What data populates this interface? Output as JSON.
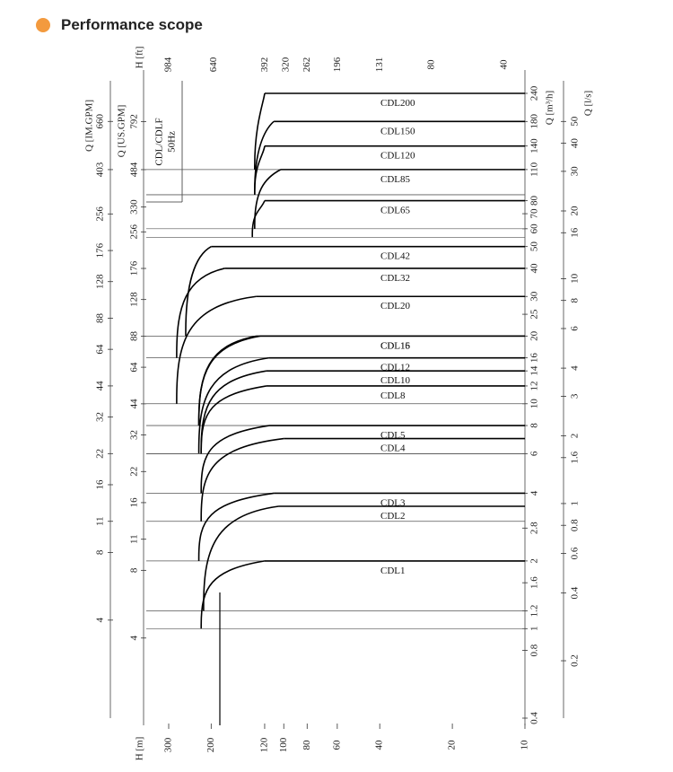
{
  "header": {
    "title": "Performance scope",
    "accent_color": "#F39A3E"
  },
  "chart_data": {
    "type": "line",
    "title": "",
    "annotation": [
      "CDL/CDLF",
      "50Hz"
    ],
    "axes": {
      "x_head_m": {
        "label": "H [m]",
        "ticks": [
          "300",
          "200",
          "120",
          "100",
          "80",
          "60",
          "40",
          "20",
          "10"
        ]
      },
      "x_head_ft": {
        "label": "H [ft]",
        "ticks": [
          "984",
          "640",
          "392",
          "320",
          "262",
          "196",
          "131",
          "80",
          "40"
        ]
      },
      "y_flow_m3h": {
        "label": "Q [m³/h]",
        "ticks": [
          "0.4",
          "0.8",
          "1",
          "1.2",
          "1.6",
          "2",
          "2.8",
          "4",
          "6",
          "8",
          "10",
          "12",
          "14",
          "16",
          "20",
          "25",
          "30",
          "40",
          "50",
          "60",
          "70",
          "80",
          "110",
          "140",
          "180",
          "240"
        ]
      },
      "y_flow_ls": {
        "label": "Q [l/s]",
        "ticks": [
          "0.2",
          "0.4",
          "0.6",
          "0.8",
          "1",
          "1.6",
          "2",
          "3",
          "4",
          "6",
          "8",
          "10",
          "16",
          "20",
          "30",
          "40",
          "50"
        ]
      },
      "y_flow_usgpm": {
        "label": "Q [US.GPM]",
        "ticks": [
          "4",
          "8",
          "11",
          "16",
          "22",
          "32",
          "44",
          "64",
          "88",
          "128",
          "176",
          "256",
          "330",
          "484",
          "792"
        ]
      },
      "y_flow_imgpm": {
        "label": "Q [IM.GPM]",
        "ticks": [
          "4",
          "8",
          "11",
          "16",
          "22",
          "32",
          "44",
          "64",
          "88",
          "128",
          "176",
          "256",
          "403",
          "660"
        ]
      }
    },
    "series": [
      {
        "name": "CDL200",
        "max_head": 132,
        "head_at_max_flow": 120,
        "min_flow": 110,
        "max_flow": 240
      },
      {
        "name": "CDL150",
        "max_head": 132,
        "head_at_max_flow": 110,
        "min_flow": 85,
        "max_flow": 180
      },
      {
        "name": "CDL120",
        "max_head": 132,
        "head_at_max_flow": 120,
        "min_flow": 85,
        "max_flow": 140
      },
      {
        "name": "CDL85",
        "max_head": 132,
        "head_at_max_flow": 103,
        "min_flow": 60,
        "max_flow": 110
      },
      {
        "name": "CDL65",
        "max_head": 135,
        "head_at_max_flow": 120,
        "min_flow": 55,
        "max_flow": 80
      },
      {
        "name": "CDL42",
        "max_head": 255,
        "head_at_max_flow": 200,
        "min_flow": 20,
        "max_flow": 50
      },
      {
        "name": "CDL32",
        "max_head": 278,
        "head_at_max_flow": 176,
        "min_flow": 16,
        "max_flow": 40
      },
      {
        "name": "CDL20",
        "max_head": 278,
        "head_at_max_flow": 130,
        "min_flow": 10,
        "max_flow": 30
      },
      {
        "name": "CDL16",
        "max_head": 225,
        "head_at_max_flow": 125,
        "min_flow": 8,
        "max_flow": 20
      },
      {
        "name": "CDL15",
        "max_head": 225,
        "head_at_max_flow": 130,
        "min_flow": 8,
        "max_flow": 20
      },
      {
        "name": "CDL12",
        "max_head": 225,
        "head_at_max_flow": 115,
        "min_flow": 6,
        "max_flow": 16
      },
      {
        "name": "CDL10",
        "max_head": 220,
        "head_at_max_flow": 118,
        "min_flow": 6,
        "max_flow": 14
      },
      {
        "name": "CDL8",
        "max_head": 220,
        "head_at_max_flow": 118,
        "min_flow": 6,
        "max_flow": 12
      },
      {
        "name": "CDL5",
        "max_head": 220,
        "head_at_max_flow": 115,
        "min_flow": 4,
        "max_flow": 8
      },
      {
        "name": "CDL4",
        "max_head": 220,
        "head_at_max_flow": 100,
        "min_flow": 3,
        "max_flow": 7
      },
      {
        "name": "CDL3",
        "max_head": 225,
        "head_at_max_flow": 110,
        "min_flow": 2,
        "max_flow": 4
      },
      {
        "name": "CDL2",
        "max_head": 215,
        "head_at_max_flow": 105,
        "min_flow": 1.2,
        "max_flow": 3.5
      },
      {
        "name": "CDL1",
        "max_head": 220,
        "head_at_max_flow": 120,
        "min_flow": 1,
        "max_flow": 2
      }
    ]
  }
}
